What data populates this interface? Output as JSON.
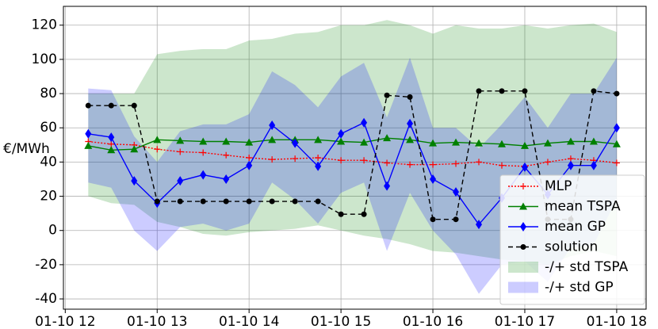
{
  "chart_data": {
    "type": "line",
    "y_label": "€/MWh",
    "x": [
      12.25,
      12.5,
      12.75,
      13,
      13.25,
      13.5,
      13.75,
      14,
      14.25,
      14.5,
      14.75,
      15,
      15.25,
      15.5,
      15.75,
      16,
      16.25,
      16.5,
      16.75,
      17,
      17.25,
      17.5,
      17.75,
      18
    ],
    "xlim": [
      11.98,
      18.32
    ],
    "xticks": [
      {
        "value": 12,
        "label": "01-10 12"
      },
      {
        "value": 13,
        "label": "01-10 13"
      },
      {
        "value": 14,
        "label": "01-10 14"
      },
      {
        "value": 15,
        "label": "01-10 15"
      },
      {
        "value": 16,
        "label": "01-10 16"
      },
      {
        "value": 17,
        "label": "01-10 17"
      },
      {
        "value": 18,
        "label": "01-10 18"
      }
    ],
    "ylim": [
      -46,
      131
    ],
    "yticks": [
      -40,
      -20,
      0,
      20,
      40,
      60,
      80,
      100,
      120
    ],
    "grid": true,
    "legend": "lower right",
    "bands": [
      {
        "name": "-/+ std TSPA",
        "color": "#008000",
        "upper": [
          80,
          80,
          80,
          103,
          105,
          106,
          106,
          111,
          112,
          115,
          116,
          120,
          120,
          123,
          120,
          115,
          120,
          118,
          118,
          120,
          118,
          120,
          121,
          116
        ],
        "lower": [
          20,
          16,
          15,
          5,
          2,
          -2,
          -3,
          -1,
          0,
          1,
          3,
          0,
          -3,
          -5,
          -8,
          -12,
          -13,
          -15,
          -17,
          -18,
          -20,
          -15,
          -12,
          -15
        ]
      },
      {
        "name": "-/+ std GP",
        "color": "#0000ff",
        "upper": [
          83,
          82,
          55,
          40,
          58,
          62,
          62,
          68,
          93,
          85,
          72,
          90,
          98,
          66,
          101,
          60,
          60,
          48,
          62,
          78,
          60,
          80,
          80,
          101
        ],
        "lower": [
          28,
          25,
          0,
          -12,
          2,
          4,
          0,
          4,
          28,
          18,
          4,
          22,
          28,
          -12,
          22,
          0,
          -14,
          -37,
          -20,
          -18,
          -30,
          -10,
          -8,
          18
        ]
      }
    ],
    "series": [
      {
        "name": "MLP",
        "color": "#ff0000",
        "linestyle": "dotted",
        "marker": "plus",
        "values": [
          52,
          50.5,
          50,
          47.5,
          46,
          45.5,
          44,
          42.5,
          41.5,
          42,
          42.5,
          41,
          41,
          39.5,
          38.5,
          38.5,
          39,
          40,
          38,
          37.5,
          40,
          42,
          41,
          39.5
        ]
      },
      {
        "name": "mean TSPA",
        "color": "#008000",
        "linestyle": "solid",
        "marker": "triangle",
        "values": [
          49.5,
          47,
          47.5,
          53,
          52.5,
          52,
          52,
          51.5,
          53,
          53,
          53,
          52,
          51.5,
          54,
          53,
          51,
          51.5,
          51,
          50.5,
          49.5,
          51,
          52,
          52,
          50.5
        ]
      },
      {
        "name": "mean GP",
        "color": "#0000ff",
        "linestyle": "solid",
        "marker": "diamond",
        "values": [
          56.5,
          54.5,
          29,
          16,
          29,
          32.5,
          30,
          38,
          61.5,
          51,
          37.5,
          56.5,
          63,
          26,
          62.5,
          30,
          22.5,
          3.5,
          19,
          37,
          21,
          38,
          38,
          60
        ]
      },
      {
        "name": "solution",
        "color": "#000000",
        "linestyle": "dashed",
        "marker": "circle",
        "values": [
          73,
          73,
          73,
          17,
          17,
          17,
          17,
          17,
          17,
          17,
          17,
          9.5,
          9.5,
          79,
          78,
          6.5,
          6.5,
          81.5,
          81.5,
          81.5,
          6.5,
          6.5,
          81.5,
          80
        ]
      }
    ]
  }
}
